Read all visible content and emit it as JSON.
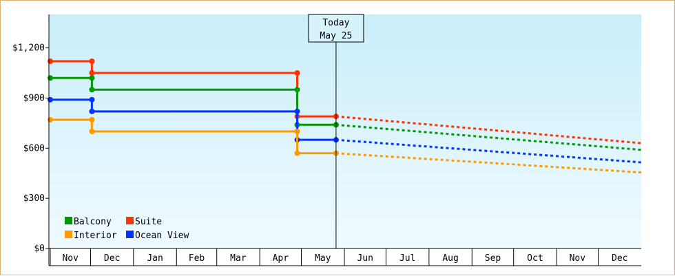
{
  "chart_data": {
    "type": "line",
    "title": "",
    "xlabel": "",
    "ylabel": "",
    "ylim": [
      0,
      1400
    ],
    "y_ticks": [
      {
        "value": 0,
        "label": "$0"
      },
      {
        "value": 300,
        "label": "$300"
      },
      {
        "value": 600,
        "label": "$600"
      },
      {
        "value": 900,
        "label": "$900"
      },
      {
        "value": 1200,
        "label": "$1,200"
      }
    ],
    "x_range": [
      "2023-10-31",
      "2024-12-31"
    ],
    "months": [
      {
        "label": "Nov",
        "start": "2023-11-01",
        "end": "2023-11-30"
      },
      {
        "label": "Dec",
        "start": "2023-11-30",
        "end": "2023-12-31"
      },
      {
        "label": "Jan",
        "start": "2023-12-31",
        "end": "2024-01-31"
      },
      {
        "label": "Feb",
        "start": "2024-01-31",
        "end": "2024-02-29"
      },
      {
        "label": "Mar",
        "start": "2024-02-29",
        "end": "2024-03-31"
      },
      {
        "label": "Apr",
        "start": "2024-03-31",
        "end": "2024-04-30"
      },
      {
        "label": "May",
        "start": "2024-04-30",
        "end": "2024-05-31"
      },
      {
        "label": "Jun",
        "start": "2024-05-31",
        "end": "2024-06-30"
      },
      {
        "label": "Jul",
        "start": "2024-06-30",
        "end": "2024-07-31"
      },
      {
        "label": "Aug",
        "start": "2024-07-31",
        "end": "2024-08-31"
      },
      {
        "label": "Sep",
        "start": "2024-08-31",
        "end": "2024-09-30"
      },
      {
        "label": "Oct",
        "start": "2024-09-30",
        "end": "2024-10-31"
      },
      {
        "label": "Nov",
        "start": "2024-10-31",
        "end": "2024-11-30"
      },
      {
        "label": "Dec",
        "start": "2024-11-30",
        "end": "2024-12-31"
      }
    ],
    "today": {
      "date": "2024-05-25",
      "label_line1": "Today",
      "label_line2": "May 25"
    },
    "series": [
      {
        "name": "Suite",
        "color": "#ff3300",
        "points": [
          [
            "2023-11-01",
            1120
          ],
          [
            "2023-12-01",
            1120
          ],
          [
            "2023-12-01",
            1050
          ],
          [
            "2024-04-27",
            1050
          ],
          [
            "2024-04-27",
            790
          ],
          [
            "2024-05-25",
            790
          ]
        ],
        "forecast": [
          [
            "2024-05-25",
            790
          ],
          [
            "2024-12-31",
            630
          ]
        ]
      },
      {
        "name": "Balcony",
        "color": "#009900",
        "points": [
          [
            "2023-11-01",
            1020
          ],
          [
            "2023-12-01",
            1020
          ],
          [
            "2023-12-01",
            950
          ],
          [
            "2024-04-27",
            950
          ],
          [
            "2024-04-27",
            740
          ],
          [
            "2024-05-25",
            740
          ]
        ],
        "forecast": [
          [
            "2024-05-25",
            740
          ],
          [
            "2024-12-31",
            590
          ]
        ]
      },
      {
        "name": "Ocean View",
        "color": "#0033ff",
        "points": [
          [
            "2023-11-01",
            890
          ],
          [
            "2023-12-01",
            890
          ],
          [
            "2023-12-01",
            820
          ],
          [
            "2024-04-27",
            820
          ],
          [
            "2024-04-27",
            650
          ],
          [
            "2024-05-25",
            650
          ]
        ],
        "forecast": [
          [
            "2024-05-25",
            650
          ],
          [
            "2024-12-31",
            515
          ]
        ]
      },
      {
        "name": "Interior",
        "color": "#ff9900",
        "points": [
          [
            "2023-11-01",
            770
          ],
          [
            "2023-12-01",
            770
          ],
          [
            "2023-12-01",
            700
          ],
          [
            "2024-04-27",
            700
          ],
          [
            "2024-04-27",
            570
          ],
          [
            "2024-05-25",
            570
          ]
        ],
        "forecast": [
          [
            "2024-05-25",
            570
          ],
          [
            "2024-12-31",
            455
          ]
        ]
      }
    ],
    "legend": {
      "placement": "bottom-left",
      "items": [
        {
          "name": "Balcony",
          "color": "#009900"
        },
        {
          "name": "Suite",
          "color": "#ff3300"
        },
        {
          "name": "Interior",
          "color": "#ff9900"
        },
        {
          "name": "Ocean View",
          "color": "#0033ff"
        }
      ]
    }
  }
}
